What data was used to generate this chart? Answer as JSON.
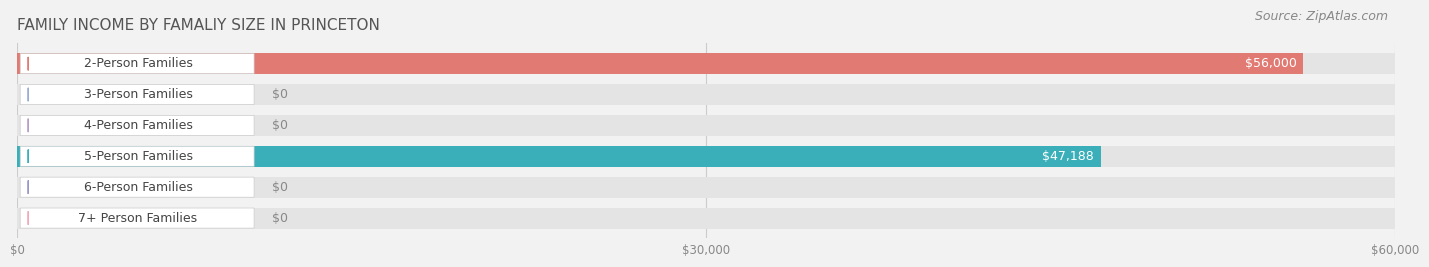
{
  "title": "FAMILY INCOME BY FAMALIY SIZE IN PRINCETON",
  "source": "Source: ZipAtlas.com",
  "categories": [
    "2-Person Families",
    "3-Person Families",
    "4-Person Families",
    "5-Person Families",
    "6-Person Families",
    "7+ Person Families"
  ],
  "values": [
    56000,
    0,
    0,
    47188,
    0,
    0
  ],
  "bar_colors": [
    "#E07A72",
    "#9BADD4",
    "#B89DC8",
    "#3AAFB9",
    "#9898CC",
    "#F0AABB"
  ],
  "value_labels": [
    "$56,000",
    "$0",
    "$0",
    "$47,188",
    "$0",
    "$0"
  ],
  "xlim": [
    0,
    60000
  ],
  "xticks": [
    0,
    30000,
    60000
  ],
  "xtick_labels": [
    "$0",
    "$30,000",
    "$60,000"
  ],
  "background_color": "#f2f2f2",
  "bar_bg_color": "#e4e4e4",
  "label_bg_color": "#ffffff",
  "title_fontsize": 11,
  "source_fontsize": 9,
  "label_fontsize": 9,
  "value_fontsize": 9
}
